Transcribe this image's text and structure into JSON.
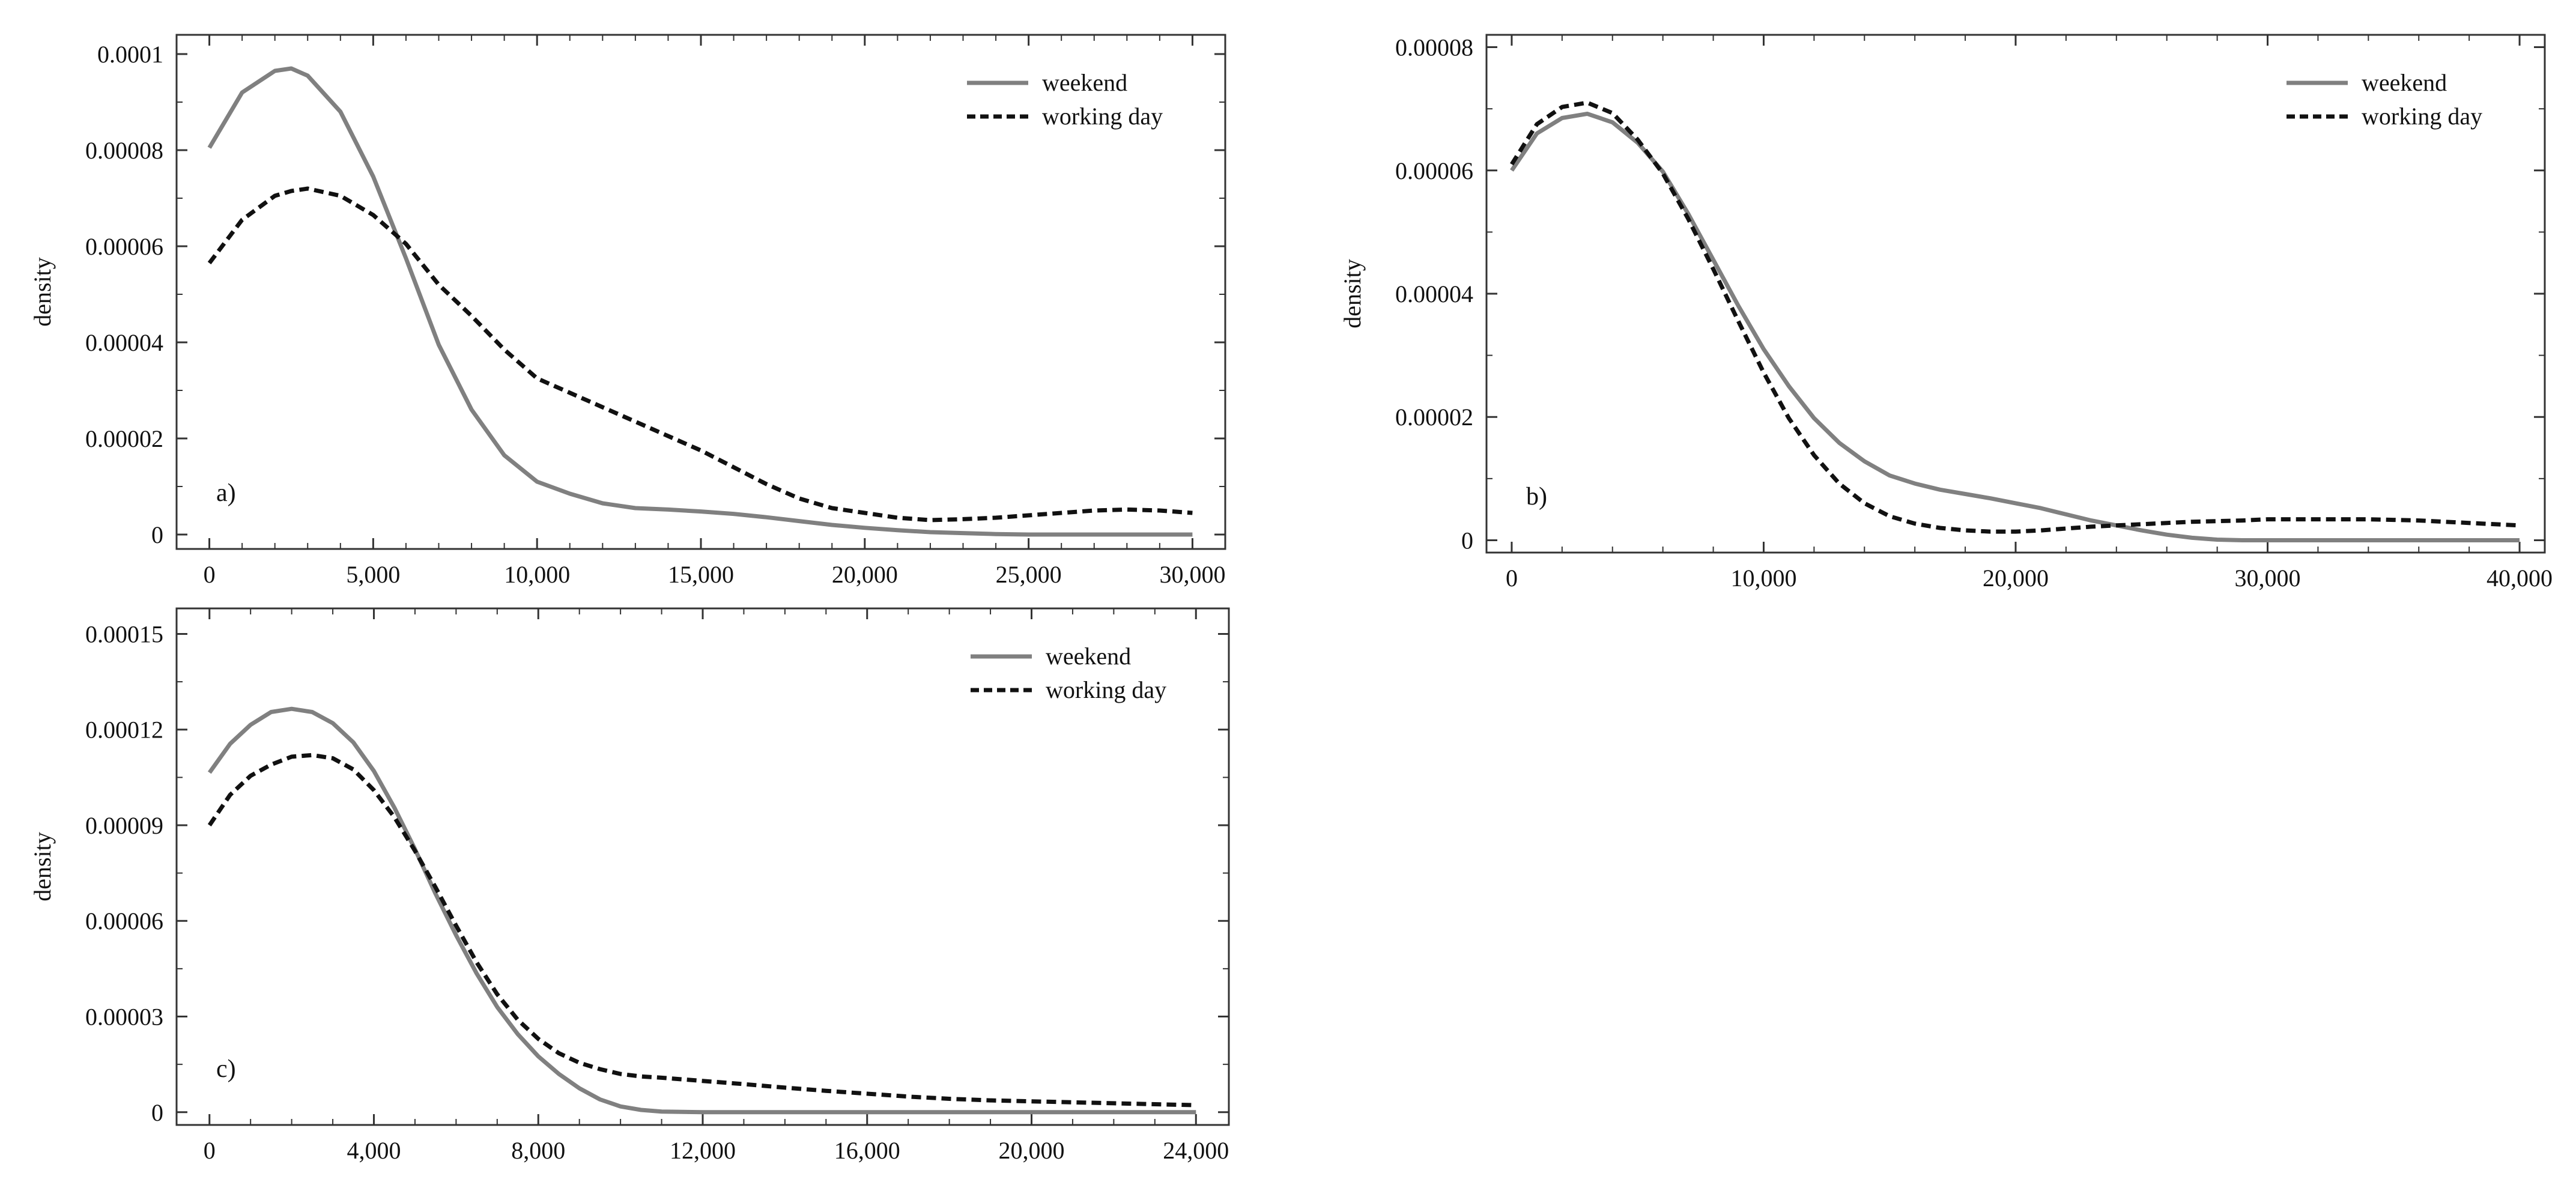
{
  "colors": {
    "weekend": "#808080",
    "working_day": "#111111",
    "frame": "#333333"
  },
  "chart_data": [
    {
      "id": "a",
      "type": "line",
      "panel_label": "a)",
      "title": "",
      "xlabel": "",
      "ylabel": "density",
      "xlim": [
        -1000,
        31000
      ],
      "ylim": [
        -3e-06,
        0.000104
      ],
      "grid": false,
      "legend_position": "top-right",
      "x_ticks": [
        0,
        5000,
        10000,
        15000,
        20000,
        25000,
        30000
      ],
      "x_tick_labels": [
        "0",
        "5,000",
        "10,000",
        "15,000",
        "20,000",
        "25,000",
        "30,000"
      ],
      "y_ticks": [
        0,
        2e-05,
        4e-05,
        6e-05,
        8e-05,
        0.0001
      ],
      "y_tick_labels": [
        "0",
        "0.00002",
        "0.00004",
        "0.00006",
        "0.00008",
        "0.0001"
      ],
      "x_minor_ticks": [
        1000,
        2000,
        3000,
        4000,
        6000,
        7000,
        8000,
        9000,
        11000,
        12000,
        13000,
        14000,
        16000,
        17000,
        18000,
        19000,
        21000,
        22000,
        23000,
        24000,
        26000,
        27000,
        28000,
        29000
      ],
      "y_minor_ticks": [
        1e-05,
        3e-05,
        5e-05,
        7e-05,
        9e-05
      ],
      "x": [
        0,
        1000,
        2000,
        2500,
        3000,
        4000,
        5000,
        6000,
        7000,
        8000,
        9000,
        10000,
        11000,
        12000,
        13000,
        14000,
        15000,
        16000,
        17000,
        18000,
        19000,
        20000,
        21000,
        22000,
        23000,
        24000,
        25000,
        26000,
        27000,
        28000,
        29000,
        30000
      ],
      "series": [
        {
          "name": "weekend",
          "style": "solid",
          "values": [
            8.05e-05,
            9.2e-05,
            9.65e-05,
            9.7e-05,
            9.55e-05,
            8.8e-05,
            7.45e-05,
            5.75e-05,
            3.95e-05,
            2.6e-05,
            1.65e-05,
            1.1e-05,
            8.5e-06,
            6.5e-06,
            5.5e-06,
            5.2e-06,
            4.8e-06,
            4.3e-06,
            3.6e-06,
            2.8e-06,
            2e-06,
            1.4e-06,
            9e-07,
            5e-07,
            3e-07,
            1e-07,
            0.0,
            0.0,
            0.0,
            0.0,
            0.0,
            0.0
          ]
        },
        {
          "name": "working day",
          "style": "dashed",
          "values": [
            5.65e-05,
            6.55e-05,
            7.05e-05,
            7.15e-05,
            7.2e-05,
            7.05e-05,
            6.65e-05,
            6.05e-05,
            5.2e-05,
            4.55e-05,
            3.85e-05,
            3.25e-05,
            2.95e-05,
            2.65e-05,
            2.35e-05,
            2.05e-05,
            1.75e-05,
            1.4e-05,
            1.05e-05,
            7.5e-06,
            5.5e-06,
            4.5e-06,
            3.5e-06,
            3e-06,
            3.2e-06,
            3.5e-06,
            4e-06,
            4.5e-06,
            5e-06,
            5.2e-06,
            5e-06,
            4.5e-06
          ]
        }
      ]
    },
    {
      "id": "b",
      "type": "line",
      "panel_label": "b)",
      "title": "",
      "xlabel": "",
      "ylabel": "density",
      "xlim": [
        -1000,
        41000
      ],
      "ylim": [
        -2e-06,
        8.2e-05
      ],
      "grid": false,
      "legend_position": "top-right",
      "x_ticks": [
        0,
        10000,
        20000,
        30000,
        40000
      ],
      "x_tick_labels": [
        "0",
        "10,000",
        "20,000",
        "30,000",
        "40,000"
      ],
      "y_ticks": [
        0,
        2e-05,
        4e-05,
        6e-05,
        8e-05
      ],
      "y_tick_labels": [
        "0",
        "0.00002",
        "0.00004",
        "0.00006",
        "0.00008"
      ],
      "x_minor_ticks": [
        2000,
        4000,
        6000,
        8000,
        12000,
        14000,
        16000,
        18000,
        22000,
        24000,
        26000,
        28000,
        32000,
        34000,
        36000,
        38000
      ],
      "y_minor_ticks": [
        1e-05,
        3e-05,
        5e-05,
        7e-05
      ],
      "x": [
        0,
        1000,
        2000,
        3000,
        4000,
        5000,
        6000,
        7000,
        8000,
        9000,
        10000,
        11000,
        12000,
        13000,
        14000,
        15000,
        16000,
        17000,
        18000,
        19000,
        20000,
        21000,
        22000,
        23000,
        24000,
        25000,
        26000,
        27000,
        28000,
        29000,
        30000,
        31000,
        32000,
        33000,
        34000,
        35000,
        36000,
        37000,
        38000,
        39000,
        40000
      ],
      "series": [
        {
          "name": "weekend",
          "style": "solid",
          "values": [
            6e-05,
            6.6e-05,
            6.85e-05,
            6.92e-05,
            6.78e-05,
            6.45e-05,
            5.98e-05,
            5.3e-05,
            4.55e-05,
            3.8e-05,
            3.1e-05,
            2.5e-05,
            1.98e-05,
            1.58e-05,
            1.28e-05,
            1.05e-05,
            9.2e-06,
            8.2e-06,
            7.5e-06,
            6.8e-06,
            6e-06,
            5.2e-06,
            4.2e-06,
            3.2e-06,
            2.4e-06,
            1.6e-06,
            9e-07,
            4e-07,
            1e-07,
            0.0,
            0.0,
            0.0,
            0.0,
            0.0,
            0.0,
            0.0,
            0.0,
            0.0,
            0.0,
            0.0,
            0.0
          ]
        },
        {
          "name": "working day",
          "style": "dashed",
          "values": [
            6.1e-05,
            6.75e-05,
            7.03e-05,
            7.1e-05,
            6.93e-05,
            6.5e-05,
            5.95e-05,
            5.22e-05,
            4.4e-05,
            3.55e-05,
            2.72e-05,
            1.98e-05,
            1.38e-05,
            9.2e-06,
            6e-06,
            3.9e-06,
            2.7e-06,
            2e-06,
            1.6e-06,
            1.4e-06,
            1.4e-06,
            1.6e-06,
            1.9e-06,
            2.2e-06,
            2.4e-06,
            2.6e-06,
            2.8e-06,
            3e-06,
            3.1e-06,
            3.2e-06,
            3.4e-06,
            3.4e-06,
            3.4e-06,
            3.4e-06,
            3.4e-06,
            3.3e-06,
            3.2e-06,
            3e-06,
            2.8e-06,
            2.6e-06,
            2.4e-06
          ]
        }
      ]
    },
    {
      "id": "c",
      "type": "line",
      "panel_label": "c)",
      "title": "",
      "xlabel": "",
      "ylabel": "density",
      "xlim": [
        -800,
        24800
      ],
      "ylim": [
        -4e-06,
        0.000158
      ],
      "grid": false,
      "legend_position": "top-right",
      "x_ticks": [
        0,
        4000,
        8000,
        12000,
        16000,
        20000,
        24000
      ],
      "x_tick_labels": [
        "0",
        "4,000",
        "8,000",
        "12,000",
        "16,000",
        "20,000",
        "24,000"
      ],
      "y_ticks": [
        0,
        3e-05,
        6e-05,
        9e-05,
        0.00012,
        0.00015
      ],
      "y_tick_labels": [
        "0",
        "0.00003",
        "0.00006",
        "0.00009",
        "0.00012",
        "0.00015"
      ],
      "x_minor_ticks": [
        1000,
        2000,
        3000,
        5000,
        6000,
        7000,
        9000,
        10000,
        11000,
        13000,
        14000,
        15000,
        17000,
        18000,
        19000,
        21000,
        22000,
        23000
      ],
      "y_minor_ticks": [
        1.5e-05,
        4.5e-05,
        7.5e-05,
        0.000105,
        0.000135
      ],
      "x": [
        0,
        500,
        1000,
        1500,
        2000,
        2500,
        3000,
        3500,
        4000,
        4500,
        5000,
        5500,
        6000,
        6500,
        7000,
        7500,
        8000,
        8500,
        9000,
        9500,
        10000,
        10500,
        11000,
        12000,
        13000,
        14000,
        15000,
        16000,
        17000,
        18000,
        19000,
        20000,
        21000,
        22000,
        23000,
        24000
      ],
      "series": [
        {
          "name": "weekend",
          "style": "solid",
          "values": [
            0.0001065,
            0.0001155,
            0.0001215,
            0.0001255,
            0.0001265,
            0.0001255,
            0.000122,
            0.000116,
            0.000107,
            9.55e-05,
            8.25e-05,
            6.85e-05,
            5.55e-05,
            4.35e-05,
            3.3e-05,
            2.45e-05,
            1.75e-05,
            1.2e-05,
            7.5e-06,
            4e-06,
            1.8e-06,
            7e-07,
            2e-07,
            0.0,
            0.0,
            0.0,
            0.0,
            0.0,
            0.0,
            0.0,
            0.0,
            0.0,
            0.0,
            0.0,
            0.0,
            0.0
          ]
        },
        {
          "name": "working day",
          "style": "dashed",
          "values": [
            9e-05,
            9.95e-05,
            0.0001055,
            0.000109,
            0.0001115,
            0.000112,
            0.000111,
            0.0001075,
            0.000101,
            9.25e-05,
            8.2e-05,
            7.05e-05,
            5.85e-05,
            4.7e-05,
            3.7e-05,
            2.9e-05,
            2.3e-05,
            1.85e-05,
            1.55e-05,
            1.35e-05,
            1.2e-05,
            1.12e-05,
            1.08e-05,
            9.8e-06,
            8.8e-06,
            7.7e-06,
            6.7e-06,
            5.8e-06,
            4.9e-06,
            4.2e-06,
            3.7e-06,
            3.4e-06,
            3.1e-06,
            2.8e-06,
            2.5e-06,
            2.2e-06
          ]
        }
      ]
    }
  ]
}
